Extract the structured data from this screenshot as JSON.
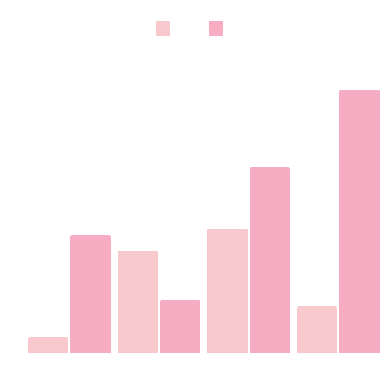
{
  "chart_data": {
    "type": "bar",
    "categories": [
      null,
      null,
      null,
      null
    ],
    "series": [
      {
        "color": "#f7c9cd",
        "values": [
          23,
          149,
          181,
          68
        ]
      },
      {
        "color": "#f6adc3",
        "values": [
          172,
          77,
          271,
          384
        ]
      }
    ]
  }
}
